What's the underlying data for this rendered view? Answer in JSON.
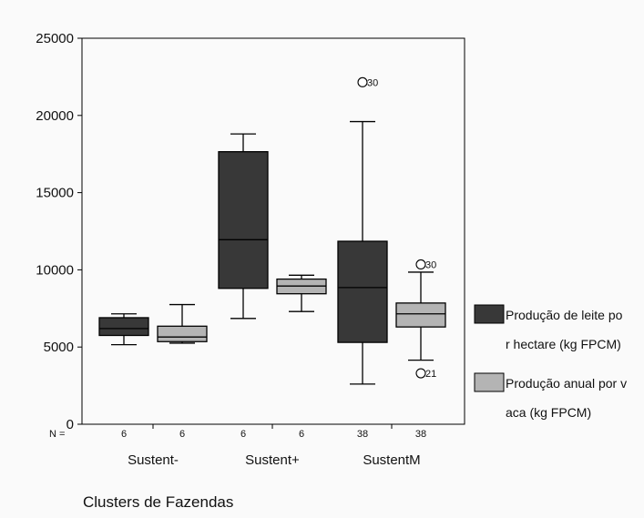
{
  "chart_data": {
    "type": "boxplot",
    "xlabel": "Clusters de Fazendas",
    "ylim": [
      0,
      25000
    ],
    "yticks": [
      0,
      5000,
      10000,
      15000,
      20000,
      25000
    ],
    "n_prefix": "N =",
    "categories": [
      "Sustent-",
      "Sustent+",
      "SustentM"
    ],
    "legend": [
      {
        "lines": [
          "Produção de leite po",
          "r hectare (kg FPCM)"
        ],
        "color": "#383838"
      },
      {
        "lines": [
          "Produção anual por v",
          "aca (kg FPCM)"
        ],
        "color": "#b4b4b4"
      }
    ],
    "series": [
      {
        "color": "#383838",
        "boxes": [
          {
            "category": "Sustent-",
            "n": "6",
            "whisker_low": 5150,
            "q1": 5750,
            "median": 6200,
            "q3": 6900,
            "whisker_high": 7150,
            "outliers": []
          },
          {
            "category": "Sustent+",
            "n": "6",
            "whisker_low": 6850,
            "q1": 8800,
            "median": 11950,
            "q3": 17650,
            "whisker_high": 18800,
            "outliers": []
          },
          {
            "category": "SustentM",
            "n": "38",
            "whisker_low": 2600,
            "q1": 5300,
            "median": 8850,
            "q3": 11850,
            "whisker_high": 19600,
            "outliers": [
              {
                "value": 22150,
                "label": "30"
              }
            ]
          }
        ]
      },
      {
        "color": "#b4b4b4",
        "boxes": [
          {
            "category": "Sustent-",
            "n": "6",
            "whisker_low": 5250,
            "q1": 5350,
            "median": 5650,
            "q3": 6350,
            "whisker_high": 7750,
            "outliers": []
          },
          {
            "category": "Sustent+",
            "n": "6",
            "whisker_low": 7300,
            "q1": 8450,
            "median": 8950,
            "q3": 9400,
            "whisker_high": 9650,
            "outliers": []
          },
          {
            "category": "SustentM",
            "n": "38",
            "whisker_low": 4150,
            "q1": 6300,
            "median": 7150,
            "q3": 7850,
            "whisker_high": 9850,
            "outliers": [
              {
                "value": 10350,
                "label": "30"
              },
              {
                "value": 3300,
                "label": "21"
              }
            ]
          }
        ]
      }
    ]
  }
}
